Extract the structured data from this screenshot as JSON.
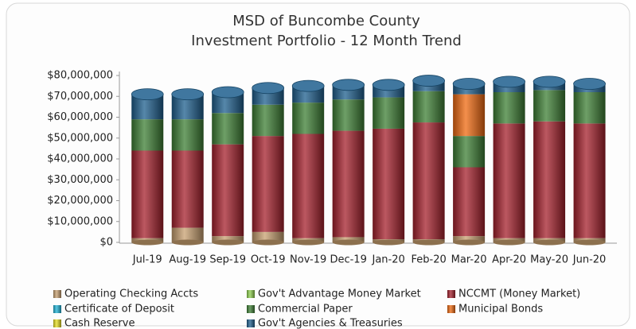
{
  "chart_data": {
    "type": "stacked_bar",
    "title": "MSD of Buncombe County",
    "subtitle": "Investment Portfolio - 12 Month Trend",
    "categories": [
      "Jul-19",
      "Aug-19",
      "Sep-19",
      "Oct-19",
      "Nov-19",
      "Dec-19",
      "Jan-20",
      "Feb-20",
      "Mar-20",
      "Apr-20",
      "May-20",
      "Jun-20"
    ],
    "series": [
      {
        "name": "Operating Checking Accts",
        "color": "#c8a070",
        "values": [
          2000000,
          7000000,
          3000000,
          5000000,
          2000000,
          2500000,
          1500000,
          1500000,
          3000000,
          2000000,
          2000000,
          2000000
        ]
      },
      {
        "name": "Gov't Advantage Money Market",
        "color": "#8fd14f",
        "values": [
          0,
          0,
          0,
          0,
          0,
          0,
          0,
          0,
          0,
          0,
          0,
          0
        ]
      },
      {
        "name": "NCCMT (Money Market)",
        "color": "#a5202c",
        "values": [
          42000000,
          37000000,
          44000000,
          46000000,
          50000000,
          51000000,
          53000000,
          56000000,
          33000000,
          55000000,
          56000000,
          55000000
        ]
      },
      {
        "name": "Certificate of Deposit",
        "color": "#1fb4d8",
        "values": [
          0,
          0,
          0,
          0,
          0,
          0,
          0,
          0,
          0,
          0,
          0,
          0
        ]
      },
      {
        "name": "Commercial Paper",
        "color": "#3d7f34",
        "values": [
          15000000,
          15000000,
          15000000,
          15000000,
          15000000,
          15000000,
          15000000,
          15000000,
          15000000,
          15000000,
          15000000,
          15000000
        ]
      },
      {
        "name": "Municipal Bonds",
        "color": "#f06a10",
        "values": [
          0,
          0,
          0,
          0,
          0,
          0,
          0,
          0,
          20000000,
          0,
          0,
          0
        ]
      },
      {
        "name": "Cash  Reserve",
        "color": "#e8e020",
        "values": [
          0,
          0,
          0,
          0,
          0,
          0,
          0,
          0,
          0,
          0,
          0,
          0
        ]
      },
      {
        "name": "Gov't Agencies & Treasuries",
        "color": "#1e5f8e",
        "values": [
          12000000,
          12000000,
          10000000,
          8000000,
          8000000,
          7000000,
          6000000,
          5000000,
          5000000,
          5000000,
          4000000,
          4000000
        ]
      }
    ],
    "ylim": [
      0,
      80000000
    ],
    "yticks": [
      {
        "value": 0,
        "label": "$0"
      },
      {
        "value": 10000000,
        "label": "$10,000,000"
      },
      {
        "value": 20000000,
        "label": "$20,000,000"
      },
      {
        "value": 30000000,
        "label": "$30,000,000"
      },
      {
        "value": 40000000,
        "label": "$40,000,000"
      },
      {
        "value": 50000000,
        "label": "$50,000,000"
      },
      {
        "value": 60000000,
        "label": "$60,000,000"
      },
      {
        "value": 70000000,
        "label": "$70,000,000"
      },
      {
        "value": 80000000,
        "label": "$80,000,000"
      }
    ],
    "grid": false
  }
}
